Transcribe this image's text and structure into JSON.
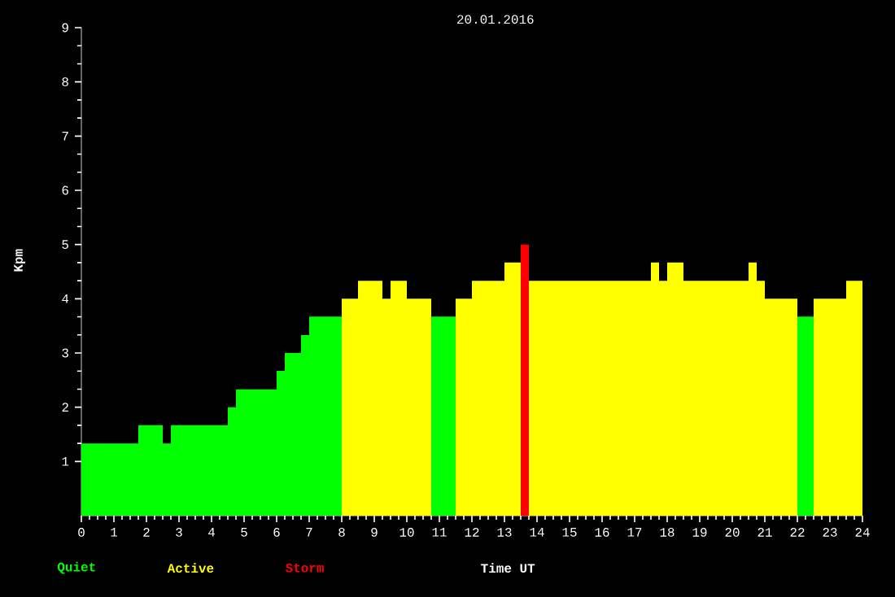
{
  "chart_data": {
    "type": "histogram",
    "title": "20.01.2016",
    "xlabel": "Time UT",
    "ylabel": "Kpm",
    "bins": [
      0,
      1.75,
      2.5,
      2.75,
      4.5,
      4.75,
      6.0,
      6.25,
      6.75,
      7.0,
      8.0,
      8.5,
      9.25,
      9.5,
      10.0,
      10.75,
      11.5,
      12.0,
      13.0,
      13.5,
      13.75,
      17.5,
      17.75,
      18.0,
      18.5,
      20.5,
      20.75,
      21.0,
      22.0,
      22.5,
      23.5,
      24.0
    ],
    "series": [
      {
        "name": "Quiet",
        "color": "#00ff00",
        "values": [
          1.33,
          1.67,
          1.33,
          1.67,
          2.0,
          2.33,
          2.67,
          3.0,
          3.33,
          3.67,
          null,
          null,
          null,
          null,
          null,
          3.67,
          null,
          null,
          null,
          null,
          null,
          null,
          null,
          null,
          null,
          null,
          null,
          null,
          3.67,
          null,
          null
        ]
      },
      {
        "name": "Active",
        "color": "#ffff00",
        "values": [
          null,
          null,
          null,
          null,
          null,
          null,
          null,
          null,
          null,
          null,
          4.0,
          4.33,
          4.0,
          4.33,
          4.0,
          null,
          4.0,
          4.33,
          4.67,
          null,
          4.33,
          4.67,
          4.33,
          4.67,
          4.33,
          4.67,
          4.33,
          4.0,
          null,
          4.0,
          4.33
        ]
      },
      {
        "name": "Storm",
        "color": "#ff0000",
        "values": [
          null,
          null,
          null,
          null,
          null,
          null,
          null,
          null,
          null,
          null,
          null,
          null,
          null,
          null,
          null,
          null,
          null,
          null,
          null,
          5.0,
          null,
          null,
          null,
          null,
          null,
          null,
          null,
          null,
          null,
          null,
          null
        ]
      }
    ],
    "xlim": [
      0,
      24
    ],
    "xticks": [
      0,
      1,
      2,
      3,
      4,
      5,
      6,
      7,
      8,
      9,
      10,
      11,
      12,
      13,
      14,
      15,
      16,
      17,
      18,
      19,
      20,
      21,
      22,
      23,
      24
    ],
    "ylim": [
      0,
      9
    ],
    "yticks": [
      1,
      2,
      3,
      4,
      5,
      6,
      7,
      8,
      9
    ]
  }
}
